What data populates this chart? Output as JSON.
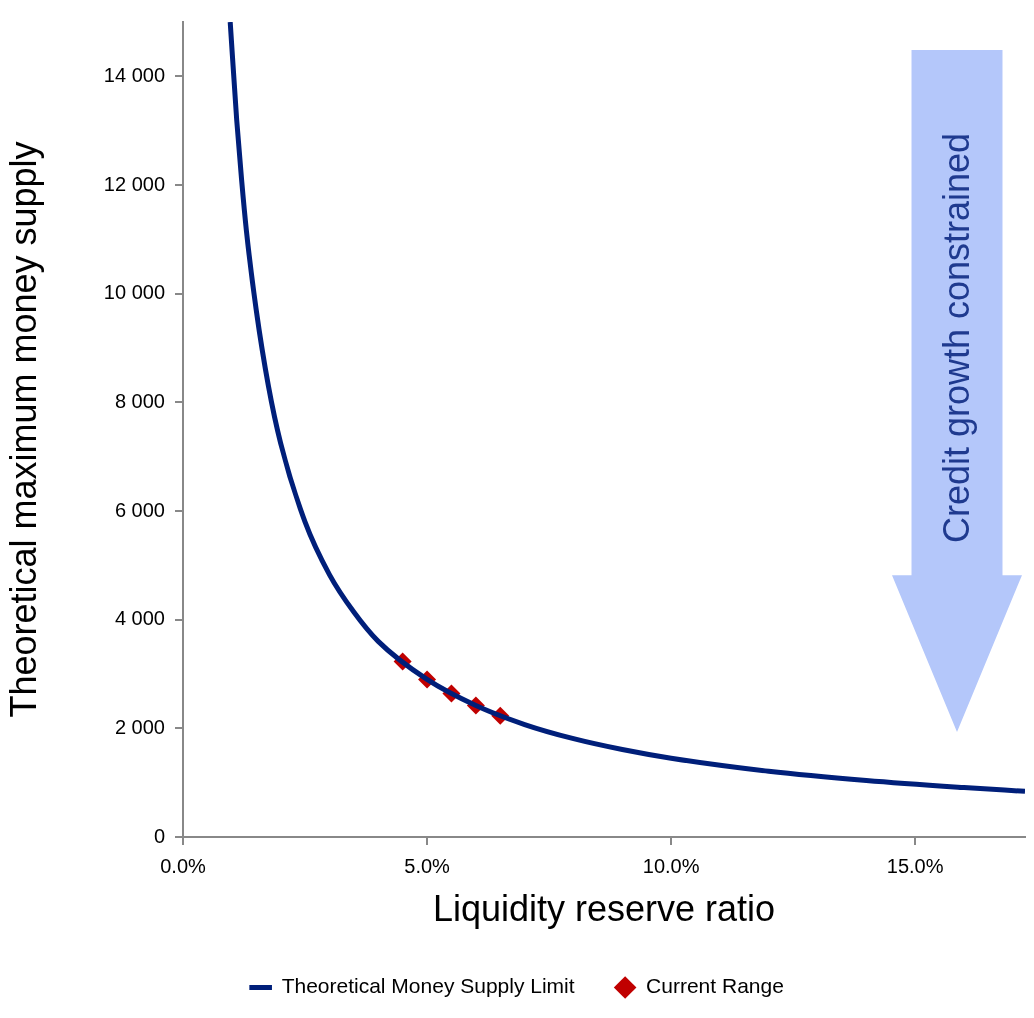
{
  "chart_data": {
    "type": "line",
    "xlabel": "Liquidity reserve ratio",
    "ylabel": "Theoretical maximum money supply",
    "xlim": [
      0,
      0.1725
    ],
    "xticks": [
      {
        "value": 0,
        "label": "0.0%"
      },
      {
        "value": 0.05,
        "label": "5.0%"
      },
      {
        "value": 0.1,
        "label": "10.0%"
      },
      {
        "value": 0.15,
        "label": "15.0%"
      }
    ],
    "ylim": [
      0,
      15000
    ],
    "yticks": [
      {
        "value": 0,
        "label": "0"
      },
      {
        "value": 2000,
        "label": "2 000"
      },
      {
        "value": 4000,
        "label": "4 000"
      },
      {
        "value": 6000,
        "label": "6 000"
      },
      {
        "value": 8000,
        "label": "8 000"
      },
      {
        "value": 10000,
        "label": "10 000"
      },
      {
        "value": 12000,
        "label": "12 000"
      },
      {
        "value": 14000,
        "label": "14 000"
      }
    ],
    "grid": false,
    "legend": "bottom",
    "annotations": [
      "Credit growth constrained"
    ],
    "series": [
      {
        "name": "Theoretical Money Supply Limit",
        "color": "#001f7a",
        "marker": "none",
        "x": [
          0.00967,
          0.011,
          0.012,
          0.013,
          0.015,
          0.0175,
          0.02,
          0.025,
          0.03,
          0.035,
          0.04,
          0.05,
          0.06,
          0.07,
          0.08,
          0.09,
          0.1,
          0.12,
          0.14,
          0.16,
          0.1725
        ],
        "values": [
          15000,
          13200,
          12100,
          11150,
          9700,
          8300,
          7250,
          5800,
          4830,
          4140,
          3600,
          2900,
          2420,
          2070,
          1810,
          1610,
          1450,
          1210,
          1040,
          910,
          840
        ]
      },
      {
        "name": "Current Range",
        "type": "scatter",
        "color": "#c00000",
        "marker": "diamond",
        "x": [
          0.045,
          0.05,
          0.055,
          0.06,
          0.065
        ],
        "values": [
          3230,
          2900,
          2640,
          2420,
          2230
        ]
      }
    ]
  }
}
